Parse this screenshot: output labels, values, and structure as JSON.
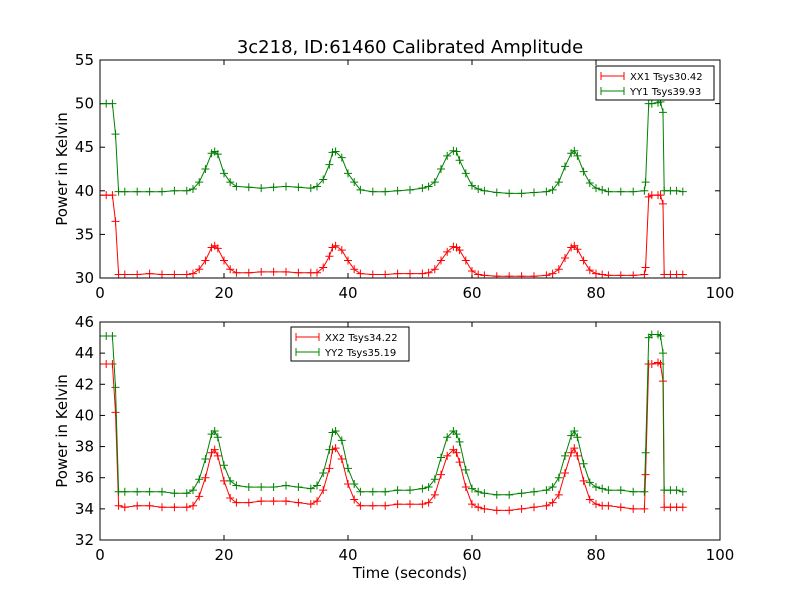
{
  "figure": {
    "title": "3c218, ID:61460 Calibrated Amplitude"
  },
  "chart_data": [
    {
      "type": "line",
      "title": "3c218, ID:61460 Calibrated Amplitude",
      "xlabel": "",
      "ylabel": "Power in Kelvin",
      "xlim": [
        0,
        100
      ],
      "ylim": [
        30,
        55
      ],
      "xticks": [
        0,
        20,
        40,
        60,
        80,
        100
      ],
      "yticks": [
        30,
        35,
        40,
        45,
        50,
        55
      ],
      "legend": {
        "placement": "top-right"
      },
      "series": [
        {
          "name": "XX1 Tsys30.42",
          "color": "#ff0000",
          "marker": "+",
          "x": [
            0,
            1,
            2,
            2.5,
            3,
            4,
            6,
            8,
            10,
            12,
            14,
            15,
            16,
            17,
            18,
            18.5,
            19,
            20,
            21,
            22,
            24,
            26,
            28,
            30,
            32,
            34,
            35,
            36,
            37,
            37.5,
            38,
            39,
            40,
            41,
            42,
            44,
            46,
            48,
            50,
            52,
            53,
            54,
            55,
            56,
            57,
            57.5,
            58,
            59,
            60,
            61,
            62,
            64,
            66,
            68,
            70,
            72,
            73,
            74,
            75,
            76,
            76.5,
            77,
            78,
            79,
            80,
            81,
            82,
            84,
            86,
            87.8,
            88,
            88.5,
            89,
            90,
            90.4,
            90.8,
            91,
            92,
            93,
            94
          ],
          "y": [
            39.5,
            39.5,
            39.5,
            36.5,
            30.4,
            30.4,
            30.4,
            30.5,
            30.4,
            30.4,
            30.4,
            30.5,
            31,
            32,
            33.5,
            33.7,
            33.4,
            32,
            31,
            30.6,
            30.6,
            30.7,
            30.7,
            30.7,
            30.6,
            30.6,
            30.6,
            31.2,
            32.5,
            33.5,
            33.7,
            33.2,
            32,
            31,
            30.5,
            30.4,
            30.4,
            30.5,
            30.5,
            30.5,
            30.6,
            31,
            32,
            33,
            33.6,
            33.5,
            33.2,
            32,
            30.8,
            30.4,
            30.3,
            30.2,
            30.2,
            30.2,
            30.2,
            30.3,
            30.5,
            31,
            32.3,
            33.5,
            33.7,
            33.3,
            32,
            30.9,
            30.5,
            30.4,
            30.3,
            30.3,
            30.3,
            30.4,
            31.2,
            39.3,
            39.5,
            39.5,
            39.5,
            38.5,
            30.4,
            30.4,
            30.4,
            30.4
          ]
        },
        {
          "name": "YY1 Tsys39.93",
          "color": "#008000",
          "marker": "+",
          "x": [
            0,
            1,
            2,
            2.5,
            3,
            4,
            6,
            8,
            10,
            12,
            14,
            15,
            16,
            17,
            18,
            18.5,
            19,
            20,
            21,
            22,
            24,
            26,
            28,
            30,
            32,
            34,
            35,
            36,
            37,
            37.5,
            38,
            39,
            40,
            41,
            42,
            44,
            46,
            48,
            50,
            52,
            53,
            54,
            55,
            56,
            57,
            57.5,
            58,
            59,
            60,
            61,
            62,
            64,
            66,
            68,
            70,
            72,
            73,
            74,
            75,
            76,
            76.5,
            77,
            78,
            79,
            80,
            81,
            82,
            84,
            86,
            87.8,
            88,
            88.5,
            89,
            90,
            90.4,
            90.8,
            91,
            92,
            93,
            94
          ],
          "y": [
            50,
            50,
            50,
            46.5,
            39.9,
            39.9,
            39.9,
            39.9,
            39.9,
            40,
            40,
            40.2,
            41,
            42.5,
            44.3,
            44.5,
            44.2,
            42,
            41,
            40.5,
            40.4,
            40.3,
            40.4,
            40.5,
            40.4,
            40.3,
            40.5,
            41.3,
            43,
            44.4,
            44.5,
            43.8,
            42,
            41,
            40.1,
            39.9,
            39.9,
            40,
            40.1,
            40.3,
            40.5,
            41,
            42.5,
            44,
            44.6,
            44.5,
            43.5,
            42,
            40.6,
            40.2,
            40,
            39.8,
            39.7,
            39.7,
            39.8,
            39.9,
            40.1,
            41,
            42.8,
            44.3,
            44.6,
            44,
            42.2,
            40.9,
            40.3,
            40.1,
            39.9,
            39.9,
            39.9,
            40,
            41,
            50,
            50,
            50.1,
            50.2,
            49,
            40,
            40,
            40,
            39.9
          ]
        }
      ]
    },
    {
      "type": "line",
      "title": "",
      "xlabel": "Time (seconds)",
      "ylabel": "Power in Kelvin",
      "xlim": [
        0,
        100
      ],
      "ylim": [
        32,
        46
      ],
      "xticks": [
        0,
        20,
        40,
        60,
        80,
        100
      ],
      "yticks": [
        32,
        34,
        36,
        38,
        40,
        42,
        44,
        46
      ],
      "legend": {
        "placement": "upper-center"
      },
      "series": [
        {
          "name": "XX2 Tsys34.22",
          "color": "#ff0000",
          "marker": "+",
          "x": [
            0,
            1,
            2,
            2.5,
            3,
            4,
            6,
            8,
            10,
            12,
            14,
            15,
            16,
            17,
            18,
            18.5,
            19,
            20,
            21,
            22,
            24,
            26,
            28,
            30,
            32,
            34,
            35,
            36,
            37,
            37.5,
            38,
            39,
            40,
            41,
            42,
            44,
            46,
            48,
            50,
            52,
            53,
            54,
            55,
            56,
            57,
            57.5,
            58,
            59,
            60,
            61,
            62,
            64,
            66,
            68,
            70,
            72,
            73,
            74,
            75,
            76,
            76.5,
            77,
            78,
            79,
            80,
            81,
            82,
            84,
            86,
            87.8,
            88,
            88.5,
            89,
            90,
            90.4,
            90.8,
            91,
            92,
            93,
            94
          ],
          "y": [
            43.3,
            43.3,
            43.3,
            40.2,
            34.2,
            34.1,
            34.2,
            34.2,
            34.1,
            34.1,
            34.1,
            34.2,
            34.8,
            36,
            37.6,
            37.8,
            37.4,
            35.8,
            34.7,
            34.4,
            34.4,
            34.5,
            34.5,
            34.5,
            34.4,
            34.3,
            34.5,
            35.2,
            36.6,
            37.8,
            37.9,
            37.2,
            35.6,
            34.6,
            34.2,
            34.2,
            34.2,
            34.3,
            34.3,
            34.3,
            34.4,
            34.9,
            36.2,
            37.4,
            37.8,
            37.6,
            37,
            35.4,
            34.3,
            34.1,
            34,
            33.9,
            33.9,
            34,
            34.1,
            34.2,
            34.4,
            34.9,
            36.3,
            37.6,
            37.9,
            37.4,
            35.8,
            34.6,
            34.3,
            34.2,
            34.2,
            34.1,
            34,
            34,
            36.2,
            43.3,
            43.3,
            43.4,
            43.3,
            42.2,
            34.1,
            34.1,
            34.1,
            34.1
          ]
        },
        {
          "name": "YY2 Tsys35.19",
          "color": "#008000",
          "marker": "+",
          "x": [
            0,
            1,
            2,
            2.5,
            3,
            4,
            6,
            8,
            10,
            12,
            14,
            15,
            16,
            17,
            18,
            18.5,
            19,
            20,
            21,
            22,
            24,
            26,
            28,
            30,
            32,
            34,
            35,
            36,
            37,
            37.5,
            38,
            39,
            40,
            41,
            42,
            44,
            46,
            48,
            50,
            52,
            53,
            54,
            55,
            56,
            57,
            57.5,
            58,
            59,
            60,
            61,
            62,
            64,
            66,
            68,
            70,
            72,
            73,
            74,
            75,
            76,
            76.5,
            77,
            78,
            79,
            80,
            81,
            82,
            84,
            86,
            87.8,
            88,
            88.5,
            89,
            90,
            90.4,
            90.8,
            91,
            92,
            93,
            94
          ],
          "y": [
            45.1,
            45.1,
            45.1,
            41.8,
            35.1,
            35.1,
            35.1,
            35.1,
            35.1,
            35,
            35,
            35.2,
            35.9,
            37.2,
            38.8,
            39,
            38.6,
            36.8,
            35.8,
            35.5,
            35.4,
            35.4,
            35.4,
            35.5,
            35.4,
            35.3,
            35.5,
            36.3,
            37.8,
            38.9,
            39,
            38.4,
            36.6,
            35.6,
            35.1,
            35.1,
            35.1,
            35.2,
            35.2,
            35.3,
            35.4,
            35.9,
            37.3,
            38.6,
            39,
            38.8,
            38.3,
            36.5,
            35.3,
            35.1,
            35,
            34.9,
            34.9,
            35,
            35.1,
            35.2,
            35.4,
            36,
            37.4,
            38.7,
            39,
            38.6,
            36.9,
            35.7,
            35.4,
            35.3,
            35.2,
            35.2,
            35.1,
            35.1,
            37.6,
            45,
            45.2,
            45.2,
            45.1,
            44,
            35.2,
            35.2,
            35.2,
            35.1
          ]
        }
      ]
    }
  ]
}
